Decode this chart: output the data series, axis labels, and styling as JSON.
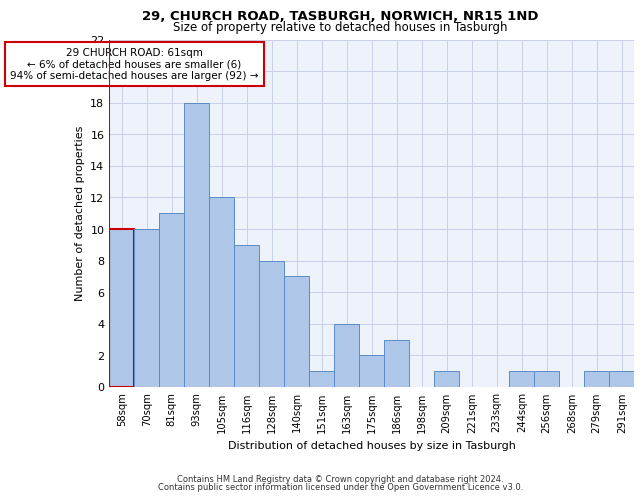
{
  "title1": "29, CHURCH ROAD, TASBURGH, NORWICH, NR15 1ND",
  "title2": "Size of property relative to detached houses in Tasburgh",
  "xlabel": "Distribution of detached houses by size in Tasburgh",
  "ylabel": "Number of detached properties",
  "categories": [
    "58sqm",
    "70sqm",
    "81sqm",
    "93sqm",
    "105sqm",
    "116sqm",
    "128sqm",
    "140sqm",
    "151sqm",
    "163sqm",
    "175sqm",
    "186sqm",
    "198sqm",
    "209sqm",
    "221sqm",
    "233sqm",
    "244sqm",
    "256sqm",
    "268sqm",
    "279sqm",
    "291sqm"
  ],
  "values": [
    10,
    10,
    11,
    18,
    12,
    9,
    8,
    7,
    1,
    4,
    2,
    3,
    0,
    1,
    0,
    0,
    1,
    1,
    0,
    1,
    1
  ],
  "bar_color": "#aec6e8",
  "bar_edge_color": "#5b8cc8",
  "highlight_edge_color": "#cc0000",
  "annotation_text": "29 CHURCH ROAD: 61sqm\n← 6% of detached houses are smaller (6)\n94% of semi-detached houses are larger (92) →",
  "annotation_box_edge_color": "#cc0000",
  "ylim": [
    0,
    22
  ],
  "yticks": [
    0,
    2,
    4,
    6,
    8,
    10,
    12,
    14,
    16,
    18,
    20,
    22
  ],
  "footer1": "Contains HM Land Registry data © Crown copyright and database right 2024.",
  "footer2": "Contains public sector information licensed under the Open Government Licence v3.0.",
  "bg_color": "#eef2fb",
  "grid_color": "#c8d0e8"
}
